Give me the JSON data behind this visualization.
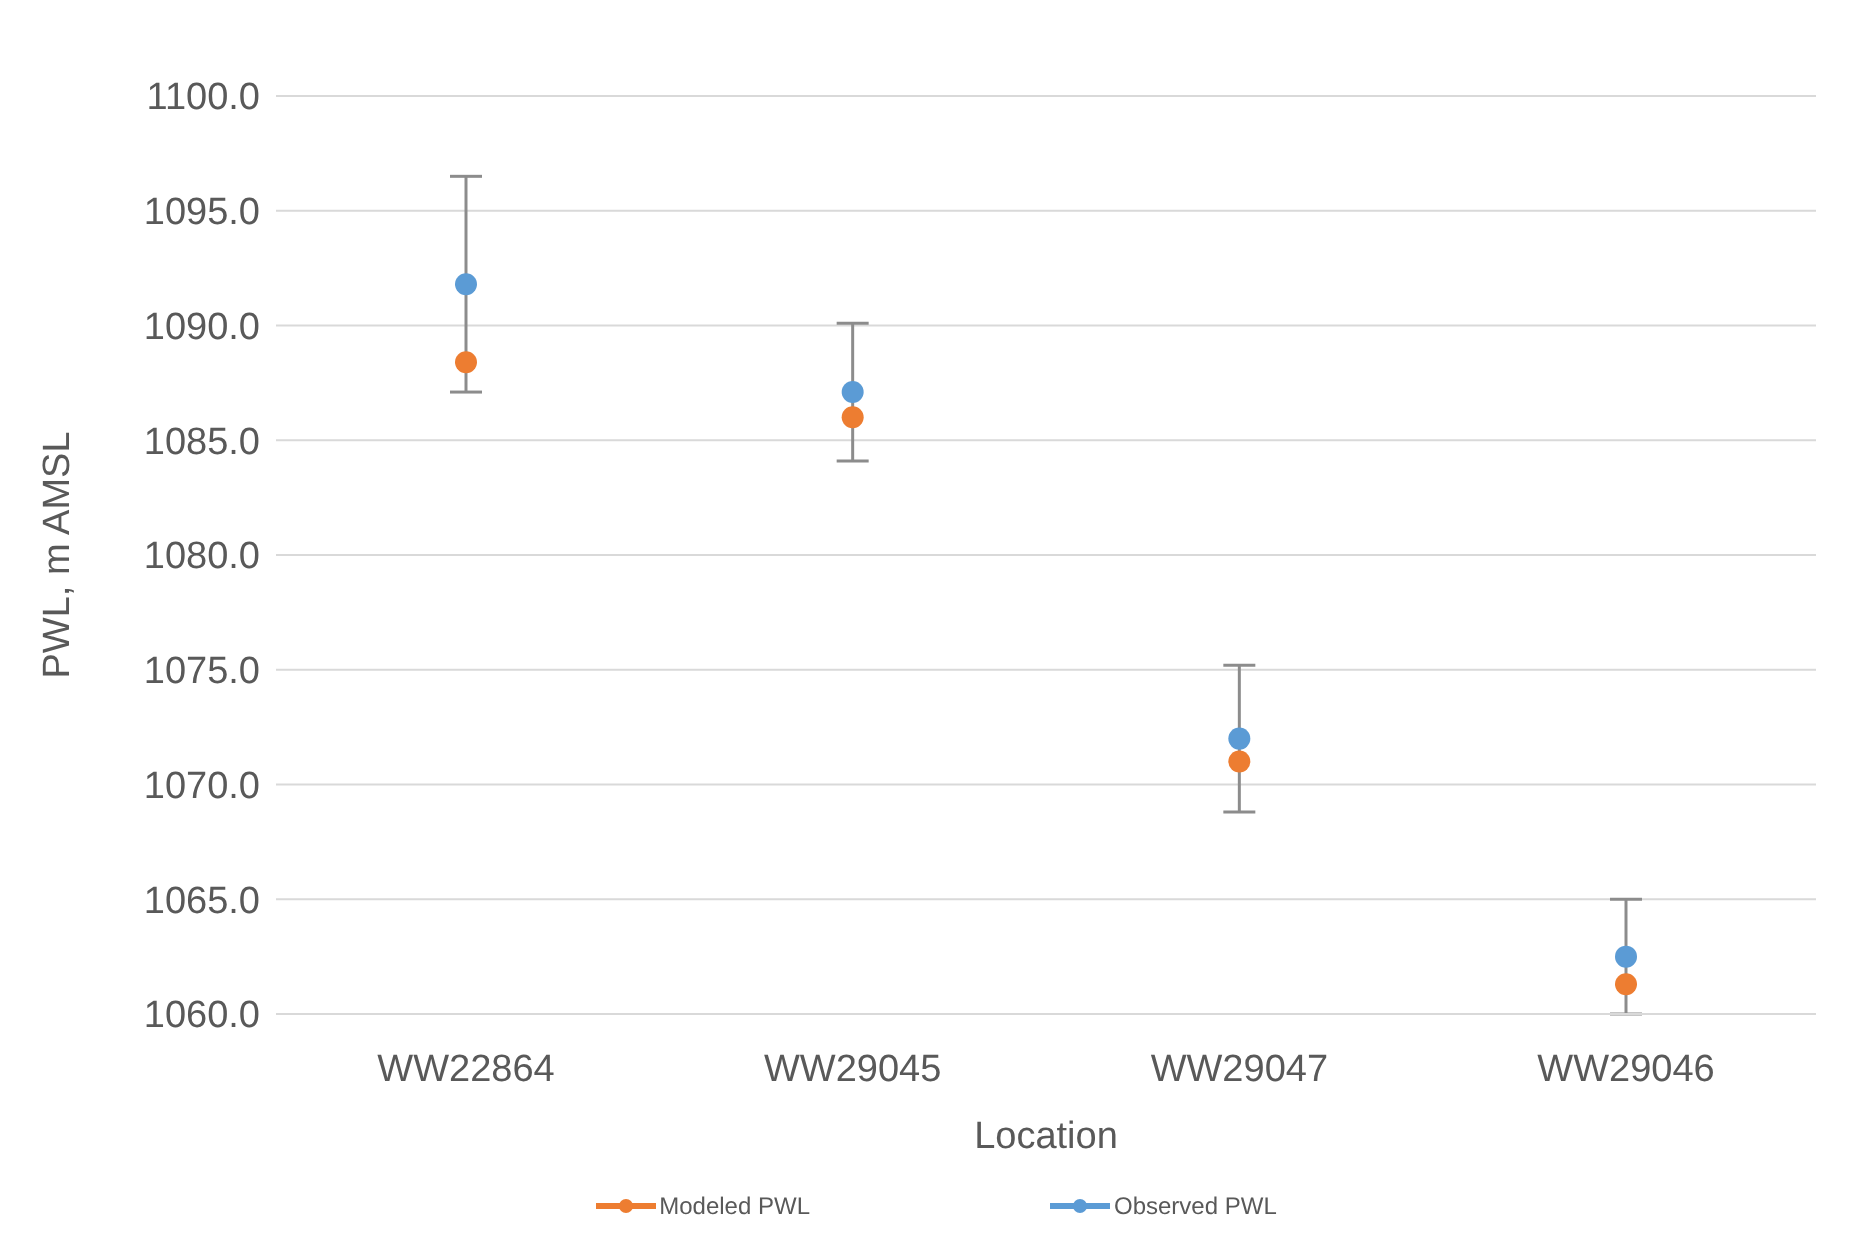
{
  "chart_data": {
    "type": "scatter",
    "xlabel": "Location",
    "ylabel": "PWL, m AMSL",
    "categories": [
      "WW22864",
      "WW29045",
      "WW29047",
      "WW29046"
    ],
    "series": [
      {
        "name": "Modeled PWL",
        "color": "#ed7d31",
        "values": [
          1088.4,
          1086.0,
          1071.0,
          1061.3
        ]
      },
      {
        "name": "Observed PWL",
        "color": "#5b9bd5",
        "values": [
          1091.8,
          1087.1,
          1072.0,
          1062.5
        ],
        "errors": [
          4.7,
          3.0,
          3.2,
          2.5
        ]
      }
    ],
    "ylim": [
      1060,
      1100
    ],
    "yticks": [
      {
        "value": 1060,
        "label": "1060.0"
      },
      {
        "value": 1065,
        "label": "1065.0"
      },
      {
        "value": 1070,
        "label": "1070.0"
      },
      {
        "value": 1075,
        "label": "1075.0"
      },
      {
        "value": 1080,
        "label": "1080.0"
      },
      {
        "value": 1085,
        "label": "1085.0"
      },
      {
        "value": 1090,
        "label": "1090.0"
      },
      {
        "value": 1095,
        "label": "1095.0"
      },
      {
        "value": 1100,
        "label": "1100.0"
      }
    ],
    "grid": "y",
    "legend": "bottom",
    "marker": "circle"
  }
}
